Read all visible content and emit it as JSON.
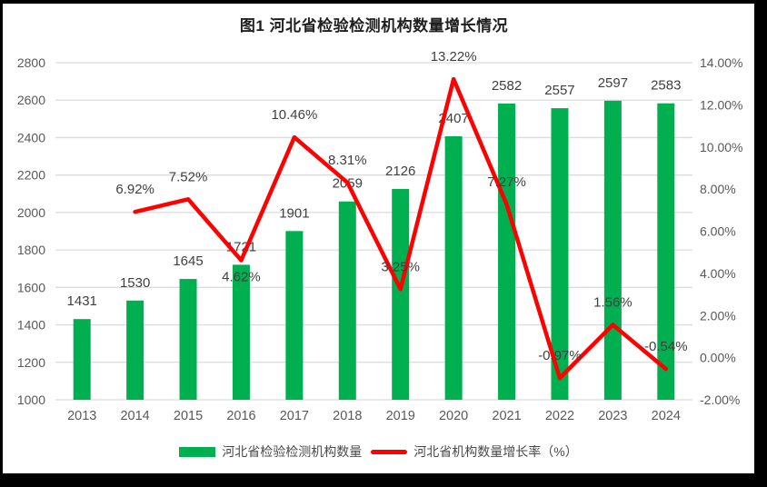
{
  "chart_data": {
    "type": "combo",
    "title": "图1 河北省检验检测机构数量增长情况",
    "categories": [
      "2013",
      "2014",
      "2015",
      "2016",
      "2017",
      "2018",
      "2019",
      "2020",
      "2021",
      "2022",
      "2023",
      "2024"
    ],
    "series": [
      {
        "name": "河北省检验检测机构数量",
        "chart_type": "bar",
        "axis": "left",
        "color": "#00B050",
        "values": [
          1431,
          1530,
          1645,
          1721,
          1901,
          2059,
          2126,
          2407,
          2582,
          2557,
          2597,
          2583
        ],
        "value_labels": [
          "1431",
          "1530",
          "1645",
          "1721",
          "1901",
          "2059",
          "2126",
          "2407",
          "2582",
          "2557",
          "2597",
          "2583"
        ]
      },
      {
        "name": "河北省机构数量增长率（%）",
        "chart_type": "line",
        "axis": "right",
        "color": "#FF0000",
        "values": [
          null,
          6.92,
          7.52,
          4.62,
          10.46,
          8.31,
          3.25,
          13.22,
          7.27,
          -0.97,
          1.56,
          -0.54
        ],
        "value_labels": [
          null,
          "6.92%",
          "7.52%",
          "4.62%",
          "10.46%",
          "8.31%",
          "3.25%",
          "13.22%",
          "7.27%",
          "-0.97%",
          "1.56%",
          "-0.54%"
        ],
        "label_positions": [
          "above",
          "above",
          "above",
          "below",
          "above",
          "above",
          "above",
          "above",
          "above",
          "above",
          "above",
          "above"
        ]
      }
    ],
    "left_axis": {
      "min": 1000,
      "max": 2800,
      "step": 200,
      "ticks": [
        "1000",
        "1200",
        "1400",
        "1600",
        "1800",
        "2000",
        "2200",
        "2400",
        "2600",
        "2800"
      ]
    },
    "right_axis": {
      "min": -2,
      "max": 14,
      "step": 2,
      "ticks": [
        "-2.00%",
        "0.00%",
        "2.00%",
        "4.00%",
        "6.00%",
        "8.00%",
        "10.00%",
        "12.00%",
        "14.00%"
      ]
    },
    "grid": true,
    "legend_position": "bottom"
  },
  "legend": {
    "items": [
      {
        "label": "河北省检验检测机构数量",
        "swatch": "bar",
        "color": "#00B050"
      },
      {
        "label": "河北省机构数量增长率（%）",
        "swatch": "line",
        "color": "#FF0000"
      }
    ]
  },
  "colors": {
    "background": "#000000",
    "canvas": "#FFFFFF",
    "bar": "#00B050",
    "line": "#FF0000",
    "grid": "#DCDCDC",
    "axis_text": "#595959",
    "data_label_text": "#3F3F3F",
    "title_text": "#1F1F1F"
  }
}
